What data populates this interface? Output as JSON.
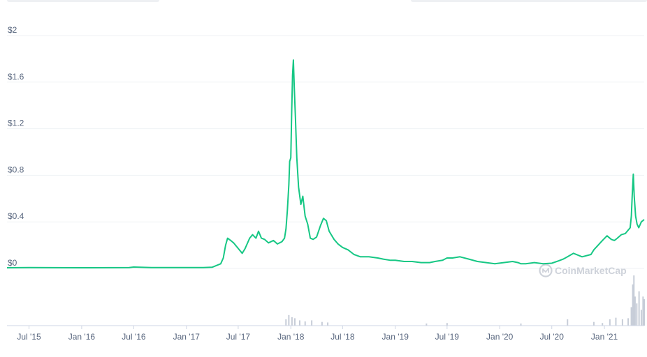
{
  "chart_data": {
    "type": "area",
    "title": "",
    "xlabel": "",
    "ylabel": "",
    "ylim": [
      0,
      2
    ],
    "y_ticks": [
      "$0",
      "$0.4",
      "$0.8",
      "$1.2",
      "$1.6",
      "$2"
    ],
    "y_tick_values": [
      0,
      0.4,
      0.8,
      1.2,
      1.6,
      2
    ],
    "x_ticks": [
      "Jul '15",
      "Jan '16",
      "Jul '16",
      "Jan '17",
      "Jul '17",
      "Jan '18",
      "Jul '18",
      "Jan '19",
      "Jul '19",
      "Jan '20",
      "Jul '20",
      "Jan '21"
    ],
    "x_tick_dates": [
      "2015-07-01",
      "2016-01-01",
      "2016-07-01",
      "2017-01-01",
      "2017-07-01",
      "2018-01-01",
      "2018-07-01",
      "2019-01-01",
      "2019-07-01",
      "2020-01-01",
      "2020-07-01",
      "2021-01-01"
    ],
    "xlim": [
      "2015-04-15",
      "2021-05-20"
    ],
    "grid": true,
    "line_color": "#16c784",
    "volume_color": "#c7cdd8",
    "series": [
      {
        "x": [
          "2015-04-15",
          "2015-07-01",
          "2016-01-01",
          "2016-06-15",
          "2016-07-01",
          "2016-09-01",
          "2017-01-01",
          "2017-03-01",
          "2017-04-01",
          "2017-05-01",
          "2017-05-10",
          "2017-05-18",
          "2017-05-25",
          "2017-06-05",
          "2017-06-15",
          "2017-06-25",
          "2017-07-05",
          "2017-07-15",
          "2017-07-25",
          "2017-08-10",
          "2017-08-20",
          "2017-09-01",
          "2017-09-10",
          "2017-09-20",
          "2017-10-01",
          "2017-10-15",
          "2017-11-01",
          "2017-11-15",
          "2017-12-01",
          "2017-12-10",
          "2017-12-15",
          "2017-12-20",
          "2017-12-25",
          "2017-12-28",
          "2018-01-01",
          "2018-01-04",
          "2018-01-07",
          "2018-01-10",
          "2018-01-13",
          "2018-01-17",
          "2018-01-22",
          "2018-01-28",
          "2018-02-05",
          "2018-02-12",
          "2018-02-20",
          "2018-03-01",
          "2018-03-10",
          "2018-03-20",
          "2018-04-01",
          "2018-04-15",
          "2018-04-25",
          "2018-05-05",
          "2018-05-15",
          "2018-06-01",
          "2018-06-15",
          "2018-07-01",
          "2018-07-20",
          "2018-08-10",
          "2018-09-01",
          "2018-10-01",
          "2018-11-01",
          "2018-11-20",
          "2018-12-15",
          "2019-01-01",
          "2019-02-01",
          "2019-03-01",
          "2019-04-01",
          "2019-05-01",
          "2019-05-20",
          "2019-06-15",
          "2019-07-01",
          "2019-07-20",
          "2019-08-15",
          "2019-09-15",
          "2019-10-15",
          "2019-11-15",
          "2019-12-15",
          "2020-01-15",
          "2020-02-15",
          "2020-03-05",
          "2020-03-15",
          "2020-04-01",
          "2020-05-01",
          "2020-06-01",
          "2020-07-01",
          "2020-07-25",
          "2020-08-10",
          "2020-08-25",
          "2020-09-15",
          "2020-10-15",
          "2020-11-15",
          "2020-11-25",
          "2020-12-10",
          "2020-12-25",
          "2021-01-10",
          "2021-01-25",
          "2021-02-05",
          "2021-02-15",
          "2021-03-01",
          "2021-03-15",
          "2021-04-01",
          "2021-04-05",
          "2021-04-08",
          "2021-04-12",
          "2021-04-15",
          "2021-04-20",
          "2021-04-25",
          "2021-05-01",
          "2021-05-10",
          "2021-05-20"
        ],
        "values": [
          0.006,
          0.007,
          0.006,
          0.007,
          0.012,
          0.008,
          0.007,
          0.008,
          0.01,
          0.04,
          0.09,
          0.2,
          0.26,
          0.24,
          0.22,
          0.19,
          0.16,
          0.13,
          0.17,
          0.26,
          0.29,
          0.26,
          0.32,
          0.26,
          0.25,
          0.22,
          0.24,
          0.21,
          0.23,
          0.26,
          0.34,
          0.5,
          0.72,
          0.92,
          0.95,
          1.35,
          1.66,
          1.79,
          1.55,
          1.3,
          0.95,
          0.7,
          0.55,
          0.62,
          0.45,
          0.38,
          0.26,
          0.25,
          0.27,
          0.37,
          0.43,
          0.41,
          0.32,
          0.25,
          0.21,
          0.18,
          0.16,
          0.12,
          0.1,
          0.1,
          0.09,
          0.08,
          0.07,
          0.07,
          0.06,
          0.06,
          0.05,
          0.05,
          0.06,
          0.07,
          0.09,
          0.09,
          0.1,
          0.08,
          0.06,
          0.05,
          0.04,
          0.05,
          0.06,
          0.05,
          0.04,
          0.04,
          0.05,
          0.04,
          0.045,
          0.065,
          0.08,
          0.1,
          0.13,
          0.1,
          0.12,
          0.16,
          0.2,
          0.24,
          0.28,
          0.25,
          0.24,
          0.26,
          0.29,
          0.3,
          0.35,
          0.45,
          0.62,
          0.81,
          0.62,
          0.45,
          0.38,
          0.35,
          0.4,
          0.42
        ]
      }
    ],
    "volume": {
      "x": [
        "2017-12-15",
        "2017-12-25",
        "2018-01-05",
        "2018-01-15",
        "2018-02-01",
        "2018-02-20",
        "2018-03-15",
        "2018-04-20",
        "2018-05-10",
        "2019-04-20",
        "2019-07-01",
        "2020-03-15",
        "2020-08-25",
        "2020-11-25",
        "2020-12-25",
        "2021-01-20",
        "2021-02-10",
        "2021-03-05",
        "2021-03-25",
        "2021-04-05",
        "2021-04-10",
        "2021-04-14",
        "2021-04-18",
        "2021-04-24",
        "2021-05-02",
        "2021-05-10",
        "2021-05-16",
        "2021-05-20"
      ],
      "values": [
        0.12,
        0.2,
        0.16,
        0.14,
        0.1,
        0.08,
        0.1,
        0.07,
        0.06,
        0.04,
        0.05,
        0.04,
        0.12,
        0.07,
        0.05,
        0.12,
        0.15,
        0.12,
        0.14,
        0.35,
        0.78,
        0.95,
        0.55,
        0.42,
        0.65,
        0.3,
        0.55,
        0.5
      ]
    },
    "watermark": "CoinMarketCap"
  }
}
